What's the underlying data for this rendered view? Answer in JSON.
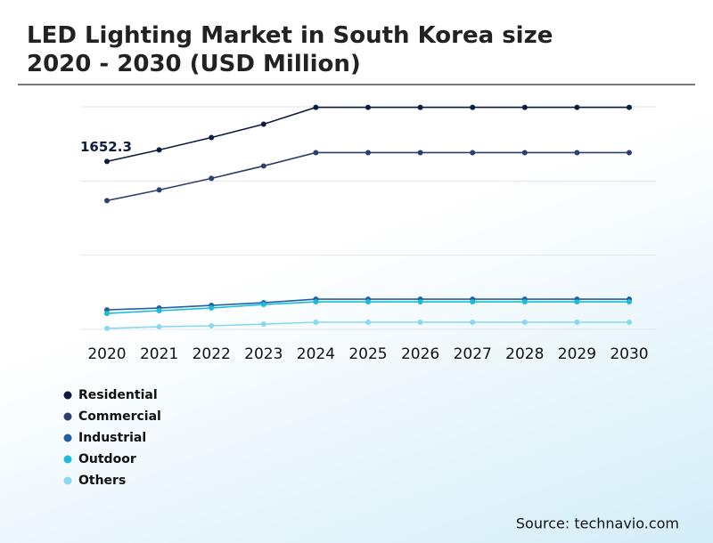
{
  "chart_data": {
    "type": "line",
    "title": "LED Lighting Market in South Korea size 2020 - 2030 (USD Million)",
    "categories": [
      "2020",
      "2021",
      "2022",
      "2023",
      "2024",
      "2025",
      "2026",
      "2027",
      "2028",
      "2029",
      "2030"
    ],
    "series": [
      {
        "name": "Residential",
        "color": "#0d1b3e",
        "values": [
          1652.3,
          1766,
          1888,
          2019,
          2185,
          2185,
          2185,
          2185,
          2185,
          2185,
          2185
        ],
        "value_labels": [
          "1652.3",
          null,
          null,
          null,
          null,
          null,
          null,
          null,
          null,
          null,
          null
        ]
      },
      {
        "name": "Commercial",
        "color": "#2e3f6e",
        "values": [
          1267,
          1372,
          1486,
          1608,
          1739,
          1739,
          1739,
          1739,
          1739,
          1739,
          1739
        ]
      },
      {
        "name": "Industrial",
        "color": "#1f5fa8",
        "values": [
          192,
          210,
          236,
          262,
          297,
          297,
          297,
          297,
          297,
          297,
          297
        ]
      },
      {
        "name": "Outdoor",
        "color": "#1bbcd8",
        "values": [
          157,
          184,
          210,
          245,
          271,
          271,
          271,
          271,
          271,
          271,
          271
        ]
      },
      {
        "name": "Others",
        "color": "#8ad8ee",
        "values": [
          10,
          26,
          35,
          52,
          70,
          70,
          70,
          70,
          70,
          70,
          70
        ]
      }
    ],
    "ylim": [
      0,
      2190
    ],
    "yticks": [
      0,
      730,
      1460,
      2190
    ],
    "grid": true,
    "source": "Source: technavio.com"
  }
}
